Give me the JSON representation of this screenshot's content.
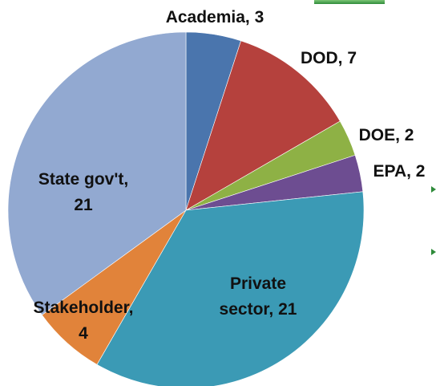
{
  "chart_data": {
    "type": "pie",
    "title": "",
    "slices": [
      {
        "label": "Academia",
        "value": 3,
        "color": "#4A75AD",
        "label_lines": [
          "Academia, 3"
        ]
      },
      {
        "label": "DOD",
        "value": 7,
        "color": "#B5413D",
        "label_lines": [
          "DOD, 7"
        ]
      },
      {
        "label": "DOE",
        "value": 2,
        "color": "#8EB145",
        "label_lines": [
          "DOE, 2"
        ]
      },
      {
        "label": "EPA",
        "value": 2,
        "color": "#6D4D91",
        "label_lines": [
          "EPA, 2"
        ]
      },
      {
        "label": "Private sector",
        "value": 21,
        "color": "#3B9AB5",
        "label_lines": [
          "Private",
          "sector, 21"
        ]
      },
      {
        "label": "Stakeholder",
        "value": 4,
        "color": "#E1833A",
        "label_lines": [
          "Stakeholder,",
          "4"
        ]
      },
      {
        "label": "State gov't",
        "value": 21,
        "color": "#92A9D1",
        "label_lines": [
          "State gov't,",
          "21"
        ]
      }
    ],
    "start_angle": "top, clockwise",
    "legend": "none"
  }
}
